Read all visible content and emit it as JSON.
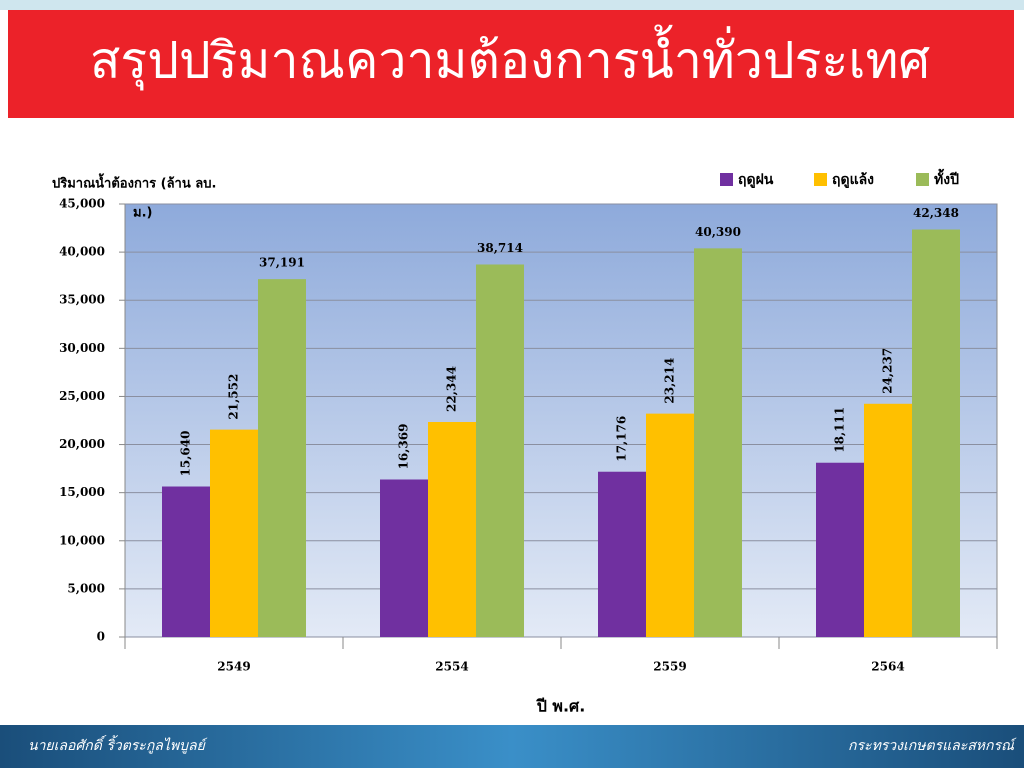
{
  "header": {
    "title": "สรุปปริมาณความต้องการน้ำทั่วประเทศ"
  },
  "chart_data": {
    "type": "bar",
    "y_label": [
      "ปริมาณน้ำต้องการ (ล้าน ลบ.",
      "ม.)"
    ],
    "x_label": "ปี พ.ศ.",
    "categories": [
      "2549",
      "2554",
      "2559",
      "2564"
    ],
    "series": [
      {
        "name": "ฤดูฝน",
        "color": "#7030a0",
        "values": [
          15640,
          16369,
          17176,
          18111
        ],
        "value_labels": [
          "15,640",
          "16,369",
          "17,176",
          "18,111"
        ]
      },
      {
        "name": "ฤดูแล้ง",
        "color": "#ffc000",
        "values": [
          21552,
          22344,
          23214,
          24237
        ],
        "value_labels": [
          "21,552",
          "22,344",
          "23,214",
          "24,237"
        ]
      },
      {
        "name": "ทั้งปี",
        "color": "#9bbb59",
        "values": [
          37191,
          38714,
          40390,
          42348
        ],
        "value_labels": [
          "37,191",
          "38,714",
          "40,390",
          "42,348"
        ]
      }
    ],
    "ylim": [
      0,
      45000
    ],
    "yticks": [
      0,
      {
        "value": 5000,
        "label": "5,000"
      },
      {
        "value": 10000,
        "label": "10,000"
      },
      {
        "value": 15000,
        "label": "15,000"
      },
      {
        "value": 20000,
        "label": "20,000"
      },
      {
        "value": 25000,
        "label": "25,000"
      },
      {
        "value": 30000,
        "label": "30,000"
      },
      {
        "value": 35000,
        "label": "35,000"
      },
      {
        "value": 40000,
        "label": "40,000"
      },
      {
        "value": 45000,
        "label": "45,000"
      }
    ],
    "grid": true
  },
  "footer": {
    "left": "นายเลอศักดิ์  ริ้วตระกูลไพบูลย์",
    "right": "กระทรวงเกษตรและสหกรณ์"
  }
}
